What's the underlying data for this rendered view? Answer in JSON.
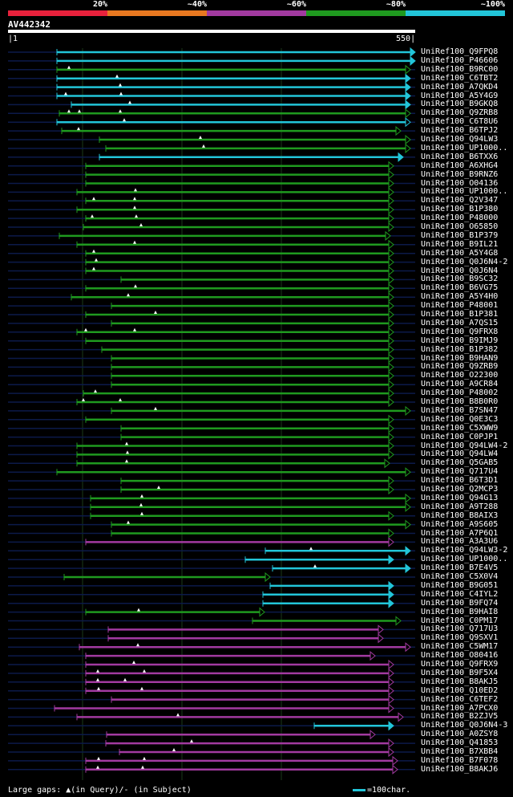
{
  "legend": {
    "labels": [
      "20%",
      "~40%",
      "~60%",
      "~80%",
      "~100%"
    ],
    "colors": [
      "#e8213c",
      "#e87820",
      "#a23aa0",
      "#1f9a1f",
      "#22c5d9"
    ]
  },
  "query": {
    "name": "AV442342",
    "start": "1",
    "end": "550"
  },
  "colors": {
    "cyan": "#22c5d9",
    "green": "#1f9a1f",
    "magenta": "#a23aa0",
    "dim": "#0c1a4a",
    "grid": "#1a3a1a"
  },
  "hits": [
    {
      "label": "UniRef100_Q9FPQ8",
      "color": "cyan",
      "arrow": "solid"
    },
    {
      "label": "UniRef100_P46606",
      "color": "cyan",
      "arrow": "solid"
    },
    {
      "label": "UniRef100_B9RC00",
      "color": "green",
      "arrow": "open"
    },
    {
      "label": "UniRef100_C6TBT2",
      "color": "cyan",
      "arrow": "solid"
    },
    {
      "label": "UniRef100_A7QKD4",
      "color": "cyan",
      "arrow": "solid"
    },
    {
      "label": "UniRef100_A5Y4G9",
      "color": "cyan",
      "arrow": "solid"
    },
    {
      "label": "UniRef100_B9GKQ8",
      "color": "cyan",
      "arrow": "solid"
    },
    {
      "label": "UniRef100_Q9ZRB8",
      "color": "green",
      "arrow": "open"
    },
    {
      "label": "UniRef100_C6T8U6",
      "color": "cyan",
      "arrow": "open"
    },
    {
      "label": "UniRef100_B6TPJ2",
      "color": "green",
      "arrow": "open"
    },
    {
      "label": "UniRef100_Q94LW3",
      "color": "green",
      "arrow": "open"
    },
    {
      "label": "UniRef100_UP1000..",
      "color": "green",
      "arrow": "open"
    },
    {
      "label": "UniRef100_B6TXX6",
      "color": "cyan",
      "arrow": "solid"
    },
    {
      "label": "UniRef100_A6XHG4",
      "color": "green",
      "arrow": "open"
    },
    {
      "label": "UniRef100_B9RNZ6",
      "color": "green",
      "arrow": "open"
    },
    {
      "label": "UniRef100_O04136",
      "color": "green",
      "arrow": "open"
    },
    {
      "label": "UniRef100_UP1000..",
      "color": "green",
      "arrow": "open"
    },
    {
      "label": "UniRef100_Q2V347",
      "color": "green",
      "arrow": "open"
    },
    {
      "label": "UniRef100_B1P380",
      "color": "green",
      "arrow": "open"
    },
    {
      "label": "UniRef100_P48000",
      "color": "green",
      "arrow": "open"
    },
    {
      "label": "UniRef100_O65850",
      "color": "green",
      "arrow": "open"
    },
    {
      "label": "UniRef100_B1P379",
      "color": "green",
      "arrow": "open"
    },
    {
      "label": "UniRef100_B9IL21",
      "color": "green",
      "arrow": "open"
    },
    {
      "label": "UniRef100_A5Y4G8",
      "color": "green",
      "arrow": "open"
    },
    {
      "label": "UniRef100_Q0J6N4-2",
      "color": "green",
      "arrow": "open"
    },
    {
      "label": "UniRef100_Q0J6N4",
      "color": "green",
      "arrow": "open"
    },
    {
      "label": "UniRef100_B9SC32",
      "color": "green",
      "arrow": "open"
    },
    {
      "label": "UniRef100_B6VG75",
      "color": "green",
      "arrow": "open"
    },
    {
      "label": "UniRef100_A5Y4H0",
      "color": "green",
      "arrow": "open"
    },
    {
      "label": "UniRef100_P48001",
      "color": "green",
      "arrow": "open"
    },
    {
      "label": "UniRef100_B1P381",
      "color": "green",
      "arrow": "open"
    },
    {
      "label": "UniRef100_A7QS15",
      "color": "green",
      "arrow": "open"
    },
    {
      "label": "UniRef100_Q9FRX8",
      "color": "green",
      "arrow": "open"
    },
    {
      "label": "UniRef100_B9IMJ9",
      "color": "green",
      "arrow": "open"
    },
    {
      "label": "UniRef100_B1P382",
      "color": "green",
      "arrow": "open"
    },
    {
      "label": "UniRef100_B9HAN9",
      "color": "green",
      "arrow": "open"
    },
    {
      "label": "UniRef100_Q9ZRB9",
      "color": "green",
      "arrow": "open"
    },
    {
      "label": "UniRef100_O22300",
      "color": "green",
      "arrow": "open"
    },
    {
      "label": "UniRef100_A9CR84",
      "color": "green",
      "arrow": "open"
    },
    {
      "label": "UniRef100_P48002",
      "color": "green",
      "arrow": "open"
    },
    {
      "label": "UniRef100_B8B0R0",
      "color": "green",
      "arrow": "open"
    },
    {
      "label": "UniRef100_B7SN47",
      "color": "green",
      "arrow": "open"
    },
    {
      "label": "UniRef100_Q0E3C3",
      "color": "green",
      "arrow": "open"
    },
    {
      "label": "UniRef100_C5XWW9",
      "color": "green",
      "arrow": "open"
    },
    {
      "label": "UniRef100_C0PJP1",
      "color": "green",
      "arrow": "open"
    },
    {
      "label": "UniRef100_Q94LW4-2",
      "color": "green",
      "arrow": "open"
    },
    {
      "label": "UniRef100_Q94LW4",
      "color": "green",
      "arrow": "open"
    },
    {
      "label": "UniRef100_Q5GAB5",
      "color": "green",
      "arrow": "open"
    },
    {
      "label": "UniRef100_Q717U4",
      "color": "green",
      "arrow": "open"
    },
    {
      "label": "UniRef100_B6T3D1",
      "color": "green",
      "arrow": "open"
    },
    {
      "label": "UniRef100_Q2MCP3",
      "color": "green",
      "arrow": "open"
    },
    {
      "label": "UniRef100_Q94G13",
      "color": "green",
      "arrow": "open"
    },
    {
      "label": "UniRef100_A9T288",
      "color": "green",
      "arrow": "open"
    },
    {
      "label": "UniRef100_B8AIX3",
      "color": "green",
      "arrow": "open"
    },
    {
      "label": "UniRef100_A9S605",
      "color": "green",
      "arrow": "open"
    },
    {
      "label": "UniRef100_A7P6Q1",
      "color": "green",
      "arrow": "open"
    },
    {
      "label": "UniRef100_A3A3U6",
      "color": "magenta",
      "arrow": "open"
    },
    {
      "label": "UniRef100_Q94LW3-2",
      "color": "cyan",
      "arrow": "solid"
    },
    {
      "label": "UniRef100_UP1000..",
      "color": "cyan",
      "arrow": "solid"
    },
    {
      "label": "UniRef100_B7E4V5",
      "color": "cyan",
      "arrow": "solid"
    },
    {
      "label": "UniRef100_C5X0V4",
      "color": "green",
      "arrow": "open"
    },
    {
      "label": "UniRef100_B9G051",
      "color": "cyan",
      "arrow": "solid"
    },
    {
      "label": "UniRef100_C4IYL2",
      "color": "cyan",
      "arrow": "solid"
    },
    {
      "label": "UniRef100_B9FQ74",
      "color": "cyan",
      "arrow": "solid"
    },
    {
      "label": "UniRef100_B9HAI8",
      "color": "green",
      "arrow": "open"
    },
    {
      "label": "UniRef100_C0PM17",
      "color": "green",
      "arrow": "open"
    },
    {
      "label": "UniRef100_Q717U3",
      "color": "magenta",
      "arrow": "open"
    },
    {
      "label": "UniRef100_Q9SXV1",
      "color": "magenta",
      "arrow": "open"
    },
    {
      "label": "UniRef100_C5WM17",
      "color": "magenta",
      "arrow": "open"
    },
    {
      "label": "UniRef100_O80416",
      "color": "magenta",
      "arrow": "open"
    },
    {
      "label": "UniRef100_Q9FRX9",
      "color": "magenta",
      "arrow": "open"
    },
    {
      "label": "UniRef100_B9F5X4",
      "color": "magenta",
      "arrow": "open"
    },
    {
      "label": "UniRef100_B8AKJ5",
      "color": "magenta",
      "arrow": "open"
    },
    {
      "label": "UniRef100_Q10ED2",
      "color": "magenta",
      "arrow": "open"
    },
    {
      "label": "UniRef100_C6TEF2",
      "color": "magenta",
      "arrow": "open"
    },
    {
      "label": "UniRef100_A7PCX0",
      "color": "magenta",
      "arrow": "open"
    },
    {
      "label": "UniRef100_B2ZJV5",
      "color": "magenta",
      "arrow": "open"
    },
    {
      "label": "UniRef100_Q0J6N4-3",
      "color": "cyan",
      "arrow": "solid"
    },
    {
      "label": "UniRef100_A0ZSY8",
      "color": "magenta",
      "arrow": "open"
    },
    {
      "label": "UniRef100_Q41853",
      "color": "magenta",
      "arrow": "open"
    },
    {
      "label": "UniRef100_B7XBB4",
      "color": "magenta",
      "arrow": "open"
    },
    {
      "label": "UniRef100_B7F078",
      "color": "magenta",
      "arrow": "open"
    },
    {
      "label": "UniRef100_B8AKJ6",
      "color": "magenta",
      "arrow": "open"
    }
  ],
  "footer": {
    "gaps": "Large gaps: ▲(in Query)/- (in Subject)",
    "scale": "=100char."
  }
}
